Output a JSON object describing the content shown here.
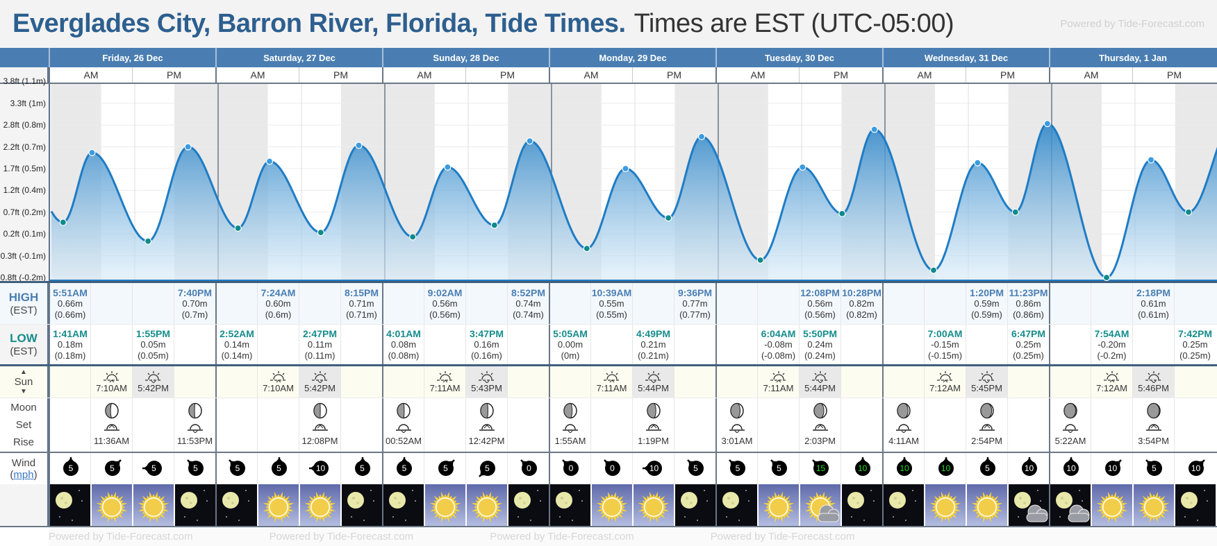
{
  "header": {
    "title": "Everglades City, Barron River, Florida, Tide Times.",
    "subtitle": "Times are EST (UTC-05:00)",
    "powered": "Powered by Tide-Forecast.com"
  },
  "labels": {
    "am": "AM",
    "pm": "PM",
    "high": "HIGH",
    "low": "LOW",
    "tz": "(EST)",
    "sun": "Sun",
    "moon": "Moon",
    "set": "Set",
    "rise": "Rise",
    "wind": "Wind",
    "mph": "mph"
  },
  "footer_text": "Powered by Tide-Forecast.com",
  "y_axis": [
    "-0.8ft (-0.2m)",
    "-0.3ft (-0.1m)",
    "0.2ft (0.1m)",
    "0.7ft (0.2m)",
    "1.2ft (0.4m)",
    "1.7ft (0.5m)",
    "2.2ft (0.7m)",
    "2.8ft (0.8m)",
    "3.3ft (1m)",
    "3.8ft (1.1m)"
  ],
  "colors": {
    "header": "#4a7eb2",
    "high": "#4a7eb2",
    "low": "#168c8c",
    "tide_line": "#1f7cc4",
    "wind_green": "#22dd22"
  },
  "days": [
    {
      "name": "Friday, 26 Dec",
      "high": [
        {
          "time": "5:51AM",
          "m": "0.66m",
          "m2": "(0.66m)"
        },
        {
          "time": "7:40PM",
          "m": "0.70m",
          "m2": "(0.7m)"
        }
      ],
      "low": [
        {
          "time": "1:41AM",
          "m": "0.18m",
          "m2": "(0.18m)"
        },
        {
          "time": "1:55PM",
          "m": "0.05m",
          "m2": "(0.05m)"
        }
      ],
      "sunrise": "7:10AM",
      "sunset": "5:42PM",
      "moon": [
        {
          "time": "11:36AM",
          "type": "set",
          "illum": 0.4
        },
        {
          "time": "11:53PM",
          "type": "rise",
          "illum": 0.45
        }
      ],
      "wind": [
        {
          "speed": "5",
          "dir": 180
        },
        {
          "speed": "5",
          "dir": 225
        },
        {
          "speed": "5",
          "dir": 90
        },
        {
          "speed": "5",
          "dir": 135
        }
      ],
      "weather": [
        "moon",
        "sun",
        "sun",
        "moon"
      ]
    },
    {
      "name": "Saturday, 27 Dec",
      "high": [
        {
          "time": "7:24AM",
          "m": "0.60m",
          "m2": "(0.6m)"
        },
        {
          "time": "8:15PM",
          "m": "0.71m",
          "m2": "(0.71m)"
        }
      ],
      "low": [
        {
          "time": "2:52AM",
          "m": "0.14m",
          "m2": "(0.14m)"
        },
        {
          "time": "2:47PM",
          "m": "0.11m",
          "m2": "(0.11m)"
        }
      ],
      "sunrise": "7:10AM",
      "sunset": "5:42PM",
      "moon": [
        {
          "time": "12:08PM",
          "type": "set",
          "illum": 0.5
        }
      ],
      "wind": [
        {
          "speed": "5",
          "dir": 135
        },
        {
          "speed": "5",
          "dir": 180
        },
        {
          "speed": "10",
          "dir": 90
        },
        {
          "speed": "5",
          "dir": 180
        }
      ],
      "weather": [
        "moon",
        "sun",
        "sun",
        "moon"
      ]
    },
    {
      "name": "Sunday, 28 Dec",
      "high": [
        {
          "time": "9:02AM",
          "m": "0.56m",
          "m2": "(0.56m)"
        },
        {
          "time": "8:52PM",
          "m": "0.74m",
          "m2": "(0.74m)"
        }
      ],
      "low": [
        {
          "time": "4:01AM",
          "m": "0.08m",
          "m2": "(0.08m)"
        },
        {
          "time": "3:47PM",
          "m": "0.16m",
          "m2": "(0.16m)"
        }
      ],
      "sunrise": "7:11AM",
      "sunset": "5:43PM",
      "moon": [
        {
          "time": "00:52AM",
          "type": "rise",
          "illum": 0.55
        },
        {
          "time": "12:42PM",
          "type": "set",
          "illum": 0.58
        }
      ],
      "wind": [
        {
          "speed": "5",
          "dir": 180
        },
        {
          "speed": "5",
          "dir": 225
        },
        {
          "speed": "5",
          "dir": 45
        },
        {
          "speed": "0",
          "dir": 135
        }
      ],
      "weather": [
        "moon",
        "sun",
        "sun",
        "moon"
      ]
    },
    {
      "name": "Monday, 29 Dec",
      "high": [
        {
          "time": "10:39AM",
          "m": "0.55m",
          "m2": "(0.55m)"
        },
        {
          "time": "9:36PM",
          "m": "0.77m",
          "m2": "(0.77m)"
        }
      ],
      "low": [
        {
          "time": "5:05AM",
          "m": "0.00m",
          "m2": "(0m)"
        },
        {
          "time": "4:49PM",
          "m": "0.21m",
          "m2": "(0.21m)"
        }
      ],
      "sunrise": "7:11AM",
      "sunset": "5:44PM",
      "moon": [
        {
          "time": "1:55AM",
          "type": "rise",
          "illum": 0.65
        },
        {
          "time": "1:19PM",
          "type": "set",
          "illum": 0.68
        }
      ],
      "wind": [
        {
          "speed": "0",
          "dir": 135
        },
        {
          "speed": "0",
          "dir": 135
        },
        {
          "speed": "10",
          "dir": 90
        },
        {
          "speed": "5",
          "dir": 135
        }
      ],
      "weather": [
        "moon",
        "sun",
        "sun",
        "moon"
      ]
    },
    {
      "name": "Tuesday, 30 Dec",
      "high": [
        {
          "time": "12:08PM",
          "m": "0.56m",
          "m2": "(0.56m)"
        },
        {
          "time": "10:28PM",
          "m": "0.82m",
          "m2": "(0.82m)"
        }
      ],
      "low": [
        {
          "time": "6:04AM",
          "m": "-0.08m",
          "m2": "(-0.08m)"
        },
        {
          "time": "5:50PM",
          "m": "0.24m",
          "m2": "(0.24m)"
        }
      ],
      "sunrise": "7:11AM",
      "sunset": "5:44PM",
      "moon": [
        {
          "time": "3:01AM",
          "type": "rise",
          "illum": 0.75
        },
        {
          "time": "2:03PM",
          "type": "set",
          "illum": 0.78
        }
      ],
      "wind": [
        {
          "speed": "5",
          "dir": 135
        },
        {
          "speed": "5",
          "dir": 135
        },
        {
          "speed": "15",
          "dir": 135,
          "green": true
        },
        {
          "speed": "10",
          "dir": 180,
          "green": true
        }
      ],
      "weather": [
        "moon",
        "sun",
        "sun-cloud",
        "moon"
      ]
    },
    {
      "name": "Wednesday, 31 Dec",
      "high": [
        {
          "time": "1:20PM",
          "m": "0.59m",
          "m2": "(0.59m)"
        },
        {
          "time": "11:23PM",
          "m": "0.86m",
          "m2": "(0.86m)"
        }
      ],
      "low": [
        {
          "time": "7:00AM",
          "m": "-0.15m",
          "m2": "(-0.15m)"
        },
        {
          "time": "6:47PM",
          "m": "0.25m",
          "m2": "(0.25m)"
        }
      ],
      "sunrise": "7:12AM",
      "sunset": "5:45PM",
      "moon": [
        {
          "time": "4:11AM",
          "type": "rise",
          "illum": 0.85
        },
        {
          "time": "2:54PM",
          "type": "set",
          "illum": 0.87
        }
      ],
      "wind": [
        {
          "speed": "10",
          "dir": 180,
          "green": true
        },
        {
          "speed": "10",
          "dir": 180,
          "green": true
        },
        {
          "speed": "5",
          "dir": 180
        },
        {
          "speed": "10",
          "dir": 180
        }
      ],
      "weather": [
        "moon",
        "sun",
        "sun",
        "moon-cloud"
      ]
    },
    {
      "name": "Thursday, 1 Jan",
      "high": [
        {
          "time": "2:18PM",
          "m": "0.61m",
          "m2": "(0.61m)"
        }
      ],
      "low": [
        {
          "time": "7:54AM",
          "m": "-0.20m",
          "m2": "(-0.2m)"
        },
        {
          "time": "7:42PM",
          "m": "0.25m",
          "m2": "(0.25m)"
        }
      ],
      "sunrise": "7:12AM",
      "sunset": "5:46PM",
      "moon": [
        {
          "time": "5:22AM",
          "type": "rise",
          "illum": 0.92
        },
        {
          "time": "3:54PM",
          "type": "set",
          "illum": 0.94
        }
      ],
      "wind": [
        {
          "speed": "10",
          "dir": 180
        },
        {
          "speed": "10",
          "dir": 225
        },
        {
          "speed": "5",
          "dir": 135
        },
        {
          "speed": "10",
          "dir": 225
        }
      ],
      "weather": [
        "moon-cloud",
        "sun",
        "sun",
        "moon"
      ]
    }
  ]
}
